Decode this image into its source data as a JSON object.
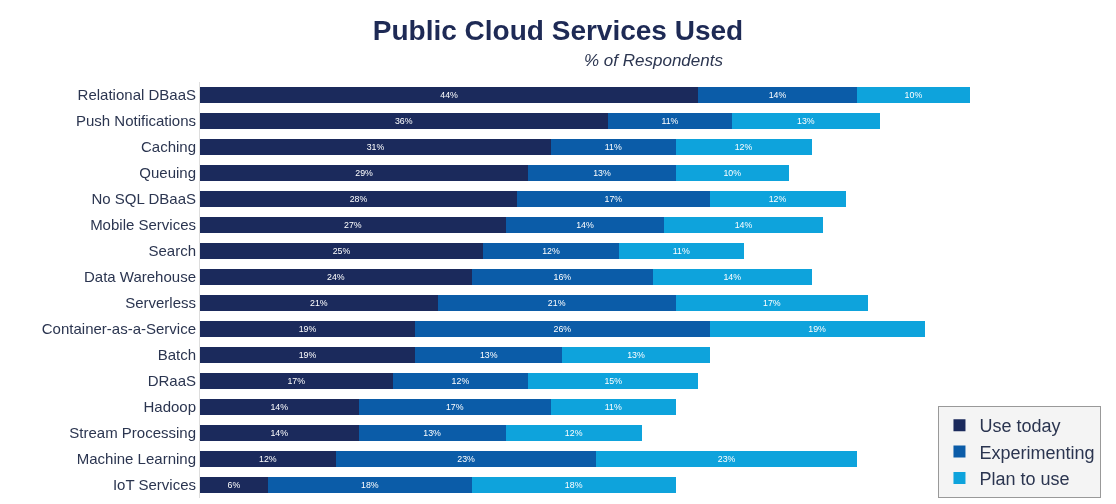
{
  "chart_data": {
    "type": "bar",
    "orientation": "horizontal",
    "stacked": true,
    "title": "Public Cloud Services Used",
    "subtitle": "% of Respondents",
    "categories": [
      "Relational DBaaS",
      "Push Notifications",
      "Caching",
      "Queuing",
      "No SQL DBaaS",
      "Mobile Services",
      "Search",
      "Data Warehouse",
      "Serverless",
      "Container-as-a-Service",
      "Batch",
      "DRaaS",
      "Hadoop",
      "Stream Processing",
      "Machine Learning",
      "IoT Services"
    ],
    "series": [
      {
        "name": "Use today",
        "color": "#1b2a5c",
        "values": [
          44,
          36,
          31,
          29,
          28,
          27,
          25,
          24,
          21,
          19,
          19,
          17,
          14,
          14,
          12,
          6
        ],
        "value_labels": [
          "44%",
          "36%",
          "31%",
          "29%",
          "28%",
          "27%",
          "25%",
          "24%",
          "21%",
          "19%",
          "19%",
          "17%",
          "14%",
          "14%",
          "12%",
          "6%"
        ]
      },
      {
        "name": "Experimenting",
        "color": "#0b5ca8",
        "values": [
          14,
          11,
          11,
          13,
          17,
          14,
          12,
          16,
          21,
          26,
          13,
          12,
          17,
          13,
          23,
          18
        ],
        "value_labels": [
          "14%",
          "11%",
          "11%",
          "13%",
          "17%",
          "14%",
          "12%",
          "16%",
          "21%",
          "26%",
          "13%",
          "12%",
          "17%",
          "13%",
          "23%",
          "18%"
        ]
      },
      {
        "name": "Plan to use",
        "color": "#0ea3dc",
        "values": [
          10,
          13,
          12,
          10,
          12,
          14,
          11,
          14,
          17,
          19,
          13,
          15,
          11,
          12,
          23,
          18
        ],
        "value_labels": [
          "10%",
          "13%",
          "12%",
          "10%",
          "12%",
          "14%",
          "11%",
          "14%",
          "17%",
          "19%",
          "13%",
          "15%",
          "11%",
          "12%",
          "23%",
          "18%"
        ]
      }
    ],
    "xlim": [
      0,
      80
    ],
    "legend": "bottom right"
  }
}
